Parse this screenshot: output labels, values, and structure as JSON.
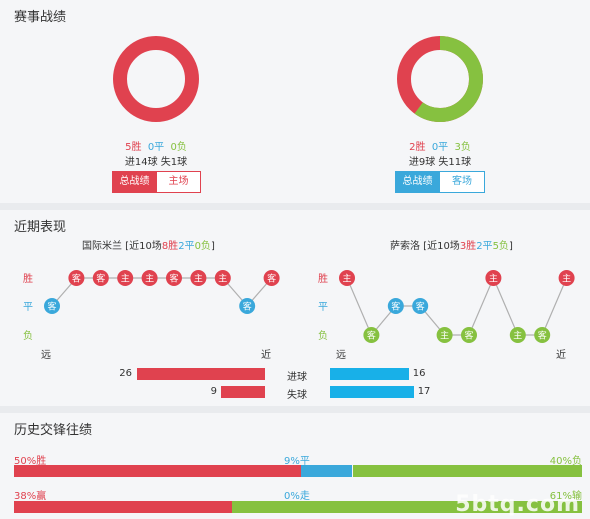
{
  "record": {
    "title": "赛事战绩",
    "home": {
      "win": "5胜",
      "draw": "0平",
      "loss": "0负",
      "goals": "进14球 失1球",
      "tab_all": "总战绩",
      "tab_venue": "主场",
      "win_frac": 1.0,
      "draw_frac": 0.0,
      "loss_frac": 0.0
    },
    "away": {
      "win": "2胜",
      "draw": "0平",
      "loss": "3负",
      "goals": "进9球 失11球",
      "tab_all": "总战绩",
      "tab_venue": "客场",
      "win_frac": 0.4,
      "draw_frac": 0.0,
      "loss_frac": 0.6
    }
  },
  "recent": {
    "title": "近期表现",
    "home": {
      "team": "国际米兰",
      "summary_pre": " [近10场",
      "wins": "8胜",
      "draws": "2平",
      "losses": "0负",
      "summary_post": "]",
      "results": [
        {
          "r": "draw",
          "loc": "客"
        },
        {
          "r": "win",
          "loc": "客"
        },
        {
          "r": "win",
          "loc": "客"
        },
        {
          "r": "win",
          "loc": "主"
        },
        {
          "r": "win",
          "loc": "主"
        },
        {
          "r": "win",
          "loc": "客"
        },
        {
          "r": "win",
          "loc": "主"
        },
        {
          "r": "win",
          "loc": "主"
        },
        {
          "r": "draw",
          "loc": "客"
        },
        {
          "r": "win",
          "loc": "客"
        }
      ]
    },
    "away": {
      "team": "萨索洛",
      "summary_pre": " [近10场",
      "wins": "3胜",
      "draws": "2平",
      "losses": "5负",
      "summary_post": "]",
      "results": [
        {
          "r": "win",
          "loc": "主"
        },
        {
          "r": "loss",
          "loc": "客"
        },
        {
          "r": "draw",
          "loc": "客"
        },
        {
          "r": "draw",
          "loc": "客"
        },
        {
          "r": "loss",
          "loc": "主"
        },
        {
          "r": "loss",
          "loc": "客"
        },
        {
          "r": "win",
          "loc": "主"
        },
        {
          "r": "loss",
          "loc": "主"
        },
        {
          "r": "loss",
          "loc": "客"
        },
        {
          "r": "win",
          "loc": "主"
        }
      ]
    },
    "axis": {
      "win": "胜",
      "draw": "平",
      "loss": "负",
      "far": "远",
      "near": "近"
    },
    "goals": {
      "scored_label": "进球",
      "conceded_label": "失球",
      "home_scored": 26,
      "home_conceded": 9,
      "away_scored": 16,
      "away_conceded": 17,
      "max": 26
    }
  },
  "h2h": {
    "title": "历史交锋往绩",
    "row1": {
      "left": "50%胜",
      "mid": "9%平",
      "right": "40%负",
      "a": 50,
      "b": 9,
      "c": 40
    },
    "row2": {
      "left": "38%赢",
      "mid": "0%走",
      "right": "61%输",
      "a": 38,
      "b": 0,
      "c": 61
    }
  },
  "colors": {
    "red": "#e0424f",
    "blue": "#3aa8db",
    "green": "#86c140",
    "grey": "#b0b0b0"
  },
  "watermark": "5btq.com"
}
